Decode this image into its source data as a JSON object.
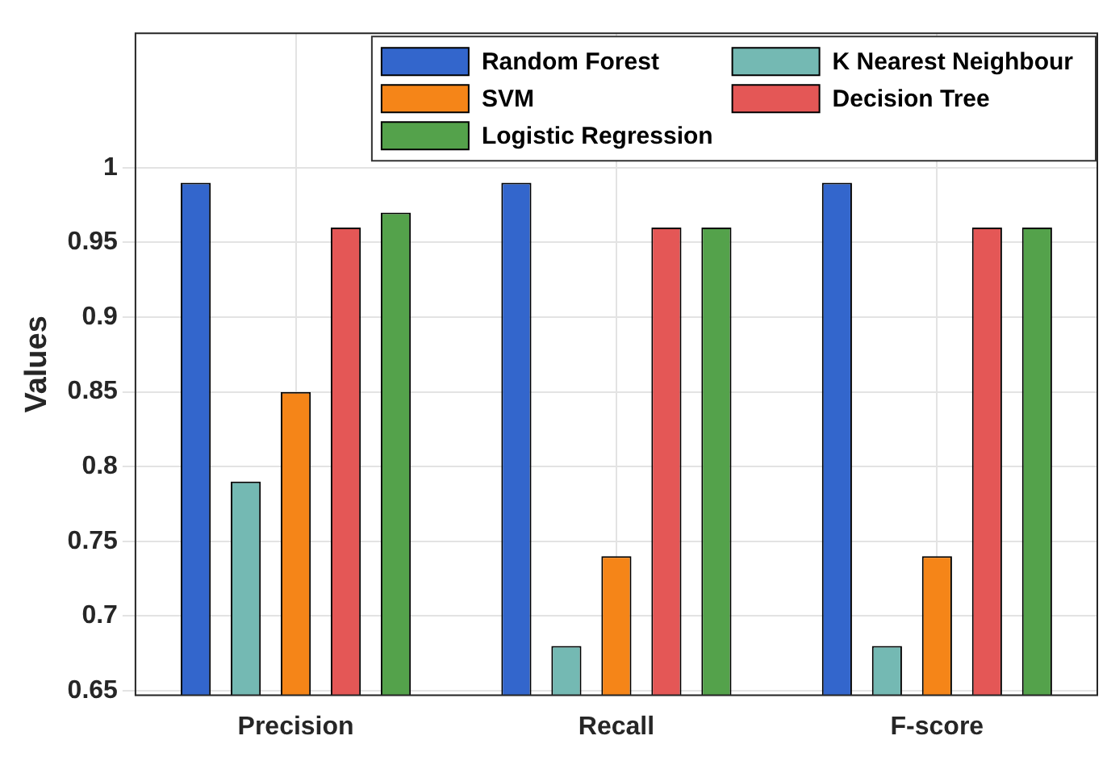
{
  "chart_data": {
    "type": "bar",
    "ylabel": "Values",
    "categories": [
      "Precision",
      "Recall",
      "F-score"
    ],
    "series": [
      {
        "name": "Random Forest",
        "color": "#3366cc",
        "values": [
          0.99,
          0.99,
          0.99
        ]
      },
      {
        "name": "K Nearest Neighbour",
        "color": "#74b9b3",
        "values": [
          0.79,
          0.68,
          0.68
        ]
      },
      {
        "name": "SVM",
        "color": "#f58518",
        "values": [
          0.85,
          0.74,
          0.74
        ]
      },
      {
        "name": "Decision Tree",
        "color": "#e45756",
        "values": [
          0.96,
          0.96,
          0.96
        ]
      },
      {
        "name": "Logistic Regression",
        "color": "#54a24b",
        "values": [
          0.97,
          0.96,
          0.96
        ]
      }
    ],
    "ylim": [
      0.647,
      1.09
    ],
    "yticks": [
      0.65,
      0.7,
      0.75,
      0.8,
      0.85,
      0.9,
      0.95,
      1
    ],
    "grid": true,
    "legend": "top right"
  }
}
